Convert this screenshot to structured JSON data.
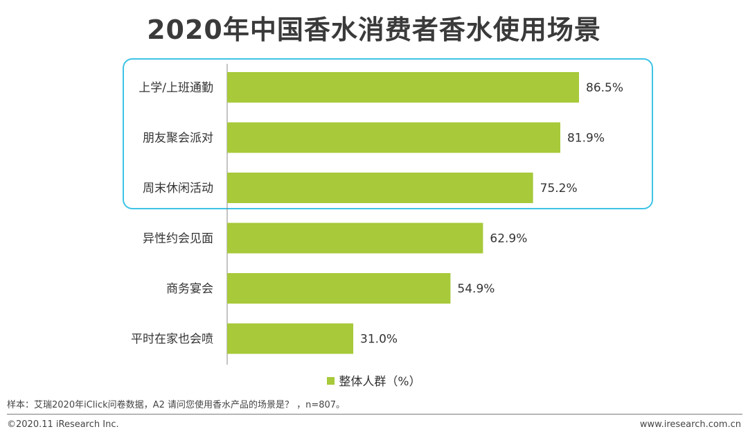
{
  "title": "2020年中国香水消费者香水使用场景",
  "chart_data": {
    "type": "bar",
    "orientation": "horizontal",
    "categories": [
      "上学/上班通勤",
      "朋友聚会派对",
      "周末休闲活动",
      "异性约会见面",
      "商务宴会",
      "平时在家也会喷"
    ],
    "values": [
      86.5,
      81.9,
      75.2,
      62.9,
      54.9,
      31.0
    ],
    "value_labels": [
      "86.5%",
      "81.9%",
      "75.2%",
      "62.9%",
      "54.9%",
      "31.0%"
    ],
    "series": [
      {
        "name": "整体人群（%）",
        "values": [
          86.5,
          81.9,
          75.2,
          62.9,
          54.9,
          31.0
        ]
      }
    ],
    "xlim": [
      0,
      100
    ],
    "highlighted_categories": [
      "上学/上班通勤",
      "朋友聚会派对",
      "周末休闲活动"
    ],
    "bar_color": "#a7c93a",
    "highlight_color": "#3cc3e6",
    "legend_position": "bottom"
  },
  "legend": {
    "label": "整体人群（%）"
  },
  "note": "样本：艾瑞2020年iClick问卷数据，A2 请问您使用香水产品的场景是？ ，n=807。",
  "footer": {
    "copyright": "©2020.11 iResearch Inc.",
    "website": "www.iresearch.com.cn"
  }
}
